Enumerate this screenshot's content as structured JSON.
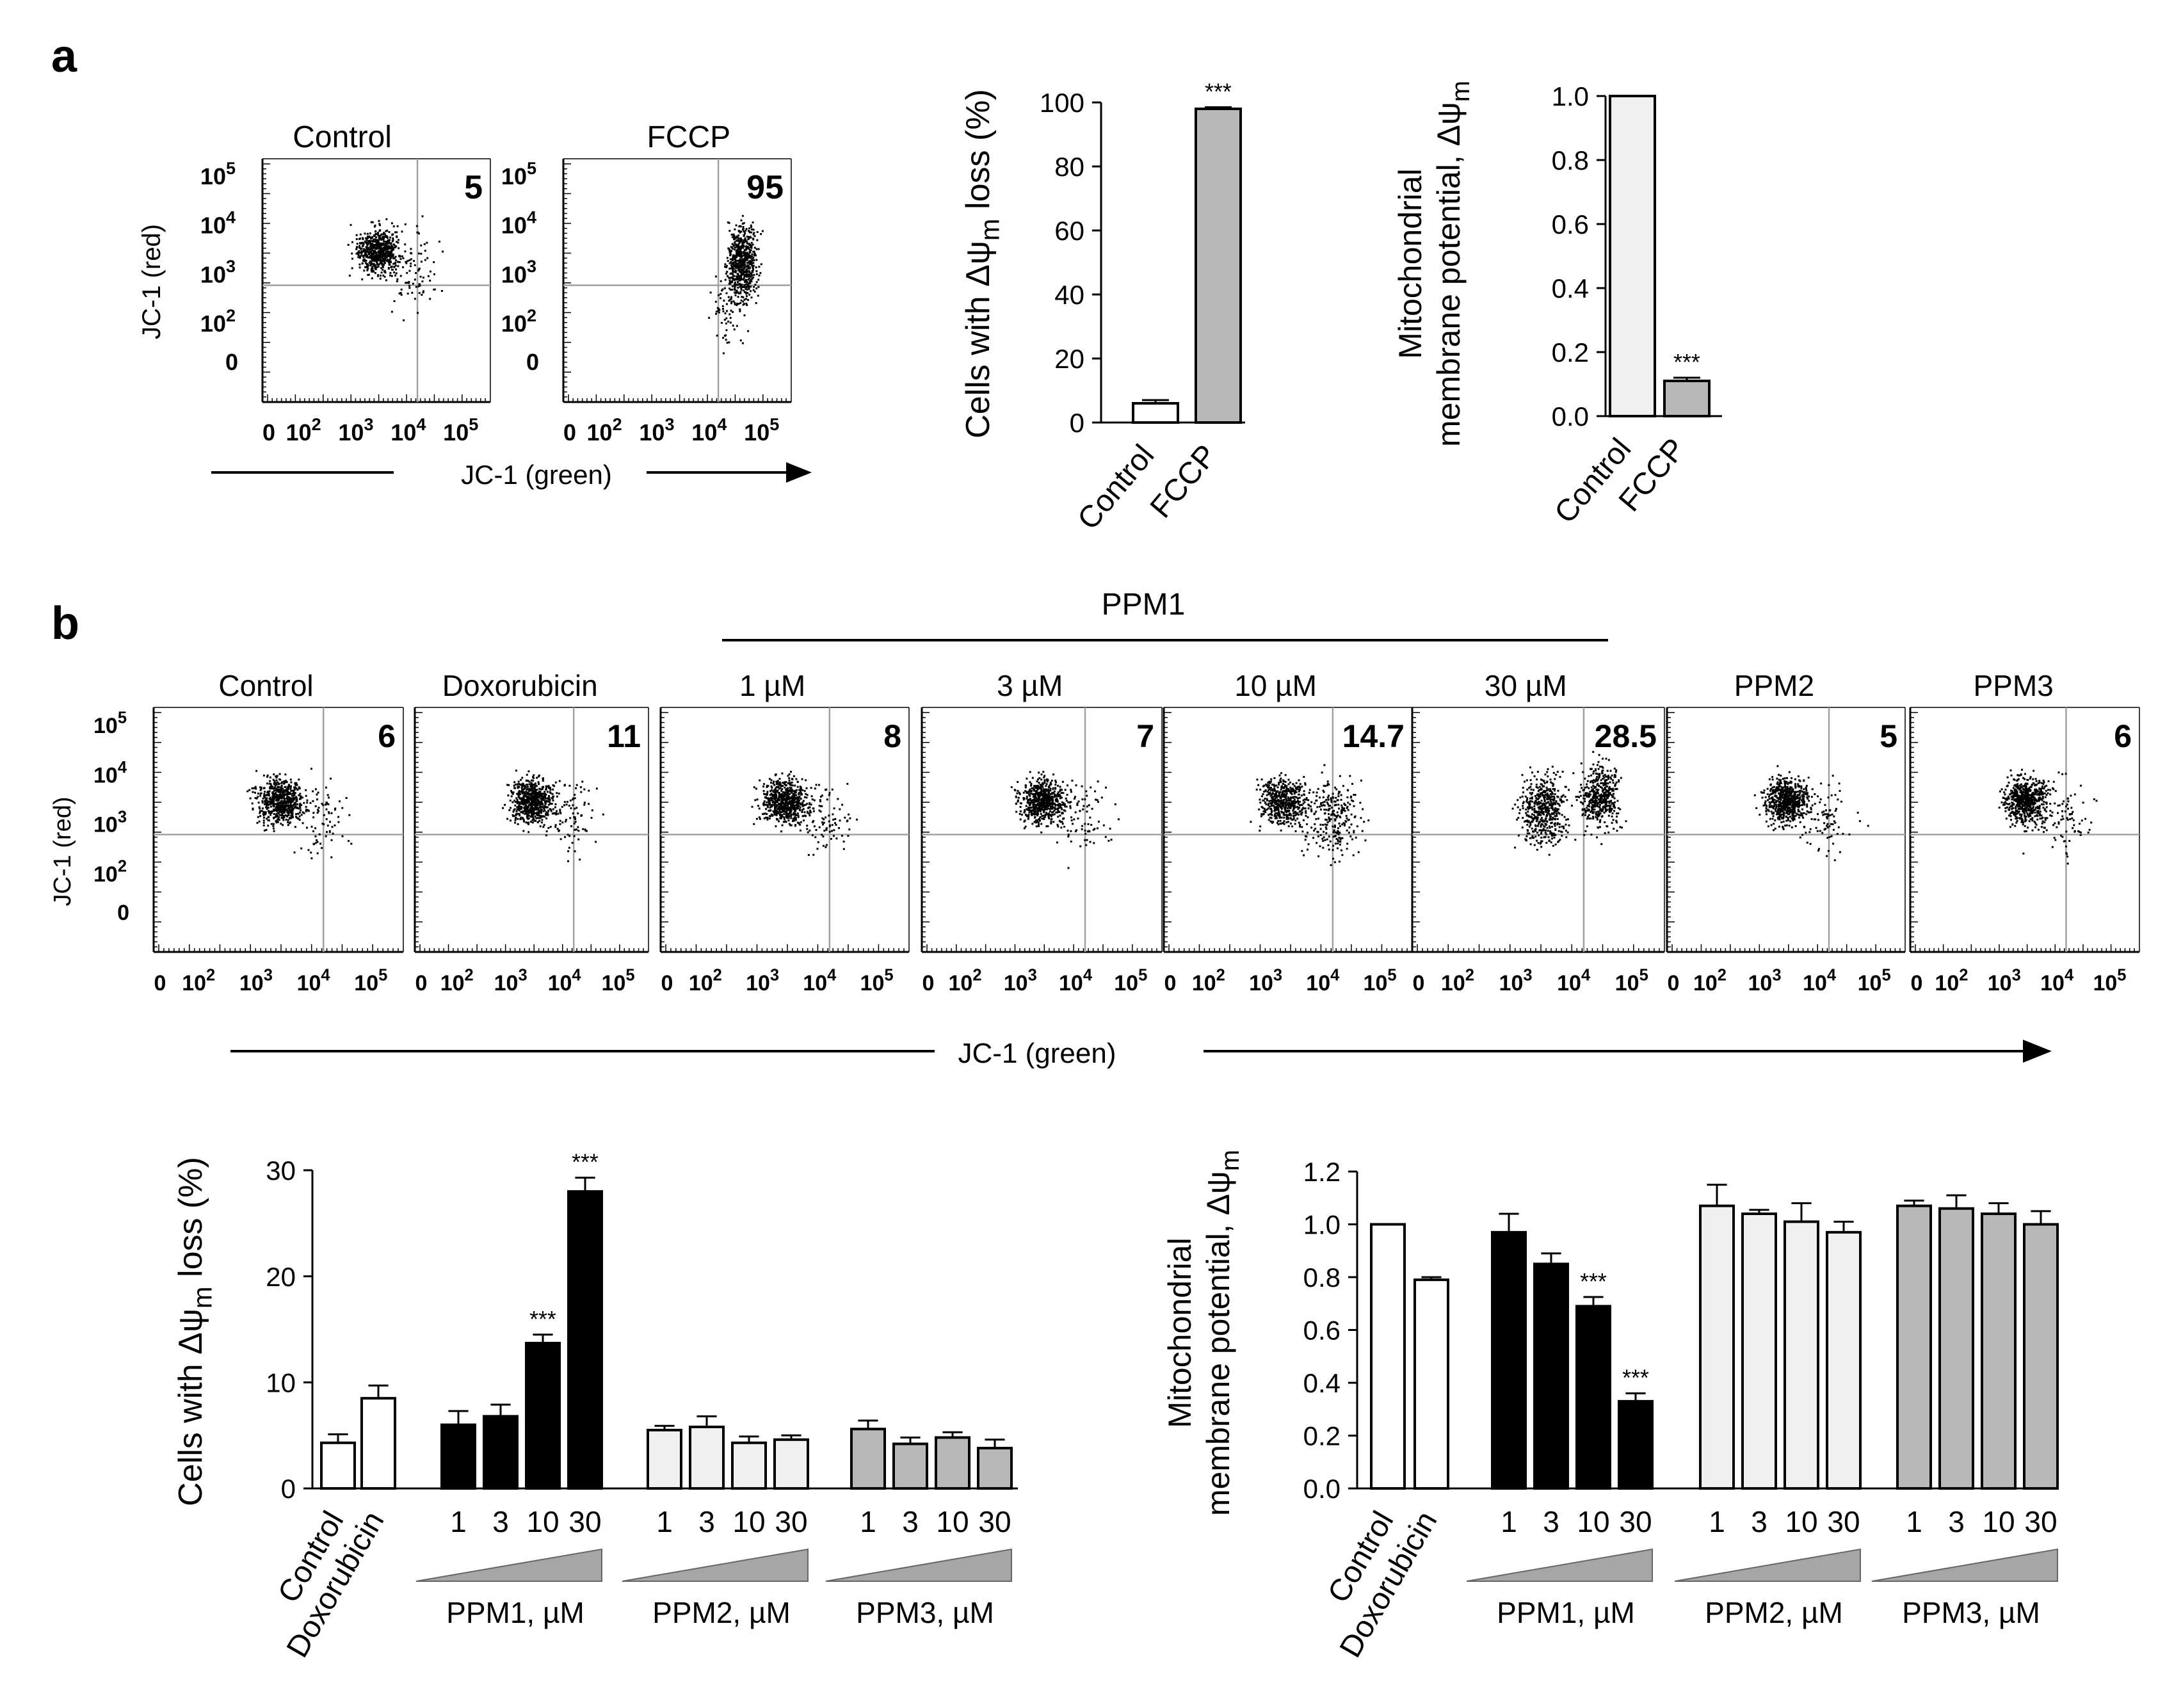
{
  "panel_labels": {
    "a": "a",
    "b": "b"
  },
  "axis_labels": {
    "jc1_red": "JC-1 (red)",
    "jc1_green": "JC-1 (green)",
    "loss_prefix": "Cells with Δψ",
    "loss_sub": "m",
    "loss_suffix": " loss (%)",
    "mmp_line1": "Mitochondrial",
    "mmp_line2": "membrane potential, Δψ",
    "mmp_sub": "m",
    "zero": "0",
    "ten": "10",
    "tick_exp": [
      "2",
      "3",
      "4",
      "5"
    ]
  },
  "colors": {
    "gray": "#b8b8b8",
    "light": "#f0f0f0",
    "white": "#ffffff",
    "black": "#000000",
    "grid": "#a0a0a0",
    "wedge": "#a6a6a6"
  },
  "sig": "***",
  "panel_a": {
    "flow": [
      {
        "title": "Control",
        "value": "5",
        "pattern": "normal"
      },
      {
        "title": "FCCP",
        "value": "95",
        "pattern": "shifted"
      }
    ],
    "bar1": {
      "type": "bar",
      "categories": [
        "Control",
        "FCCP"
      ],
      "values": [
        6,
        98
      ],
      "errors": [
        1,
        0.5
      ],
      "fills": [
        "white",
        "gray"
      ],
      "sig": [
        false,
        true
      ],
      "ylim": [
        0,
        100
      ],
      "yticks": [
        "0",
        "20",
        "40",
        "60",
        "80",
        "100"
      ],
      "ylabel": "Cells with Δψm loss (%)"
    },
    "bar2": {
      "type": "bar",
      "categories": [
        "Control",
        "FCCP"
      ],
      "values": [
        1.0,
        0.11
      ],
      "errors": [
        0,
        0.01
      ],
      "fills": [
        "light",
        "gray"
      ],
      "sig": [
        false,
        true
      ],
      "ylim": [
        0,
        1.0
      ],
      "yticks": [
        "0.0",
        "0.2",
        "0.4",
        "0.6",
        "0.8",
        "1.0"
      ],
      "ylabel": "Mitochondrial membrane potential, Δψm"
    }
  },
  "panel_b": {
    "ppm1_header": "PPM1",
    "flow": [
      {
        "title": "Control",
        "value": "6",
        "pattern": "normal"
      },
      {
        "title": "Doxorubicin",
        "value": "11",
        "pattern": "normal"
      },
      {
        "title": "1 µM",
        "value": "8",
        "pattern": "normal"
      },
      {
        "title": "3 µM",
        "value": "7",
        "pattern": "normal"
      },
      {
        "title": "10 µM",
        "value": "14.7",
        "pattern": "split"
      },
      {
        "title": "30 µM",
        "value": "28.5",
        "pattern": "split2"
      },
      {
        "title": "PPM2",
        "value": "5",
        "pattern": "normal"
      },
      {
        "title": "PPM3",
        "value": "6",
        "pattern": "normal"
      }
    ],
    "groups": [
      {
        "label": "PPM1, µM"
      },
      {
        "label": "PPM2, µM"
      },
      {
        "label": "PPM3, µM"
      }
    ],
    "conc_labels": [
      "1",
      "3",
      "10",
      "30"
    ],
    "controls": [
      "Control",
      "Doxorubicin"
    ],
    "bar1": {
      "type": "bar",
      "ylabel": "Cells with Δψm loss (%)",
      "ylim": [
        0,
        30
      ],
      "yticks": [
        "0",
        "10",
        "20",
        "30"
      ],
      "controls": {
        "values": [
          4.3,
          8.5
        ],
        "errors": [
          0.8,
          1.2
        ],
        "fills": [
          "white",
          "white"
        ]
      },
      "series": [
        {
          "name": "PPM1",
          "values": [
            6,
            6.8,
            13.7,
            28
          ],
          "errors": [
            1.3,
            1.1,
            0.8,
            1.3
          ],
          "fill": "black",
          "sig": [
            false,
            false,
            true,
            true
          ]
        },
        {
          "name": "PPM2",
          "values": [
            5.5,
            5.8,
            4.3,
            4.6
          ],
          "errors": [
            0.4,
            1.0,
            0.6,
            0.4
          ],
          "fill": "light",
          "sig": [
            false,
            false,
            false,
            false
          ]
        },
        {
          "name": "PPM3",
          "values": [
            5.6,
            4.2,
            4.8,
            3.8
          ],
          "errors": [
            0.8,
            0.6,
            0.5,
            0.8
          ],
          "fill": "gray",
          "sig": [
            false,
            false,
            false,
            false
          ]
        }
      ]
    },
    "bar2": {
      "type": "bar",
      "ylabel": "Mitochondrial membrane potential, Δψm",
      "ylim": [
        0,
        1.2
      ],
      "yticks": [
        "0.0",
        "0.2",
        "0.4",
        "0.6",
        "0.8",
        "1.0",
        "1.2"
      ],
      "controls": {
        "values": [
          1.0,
          0.79
        ],
        "errors": [
          0,
          0.01
        ],
        "fills": [
          "white",
          "white"
        ]
      },
      "series": [
        {
          "name": "PPM1",
          "values": [
            0.97,
            0.85,
            0.69,
            0.33
          ],
          "errors": [
            0.07,
            0.04,
            0.035,
            0.03
          ],
          "fill": "black",
          "sig": [
            false,
            false,
            true,
            true
          ]
        },
        {
          "name": "PPM2",
          "values": [
            1.07,
            1.04,
            1.01,
            0.97
          ],
          "errors": [
            0.08,
            0.015,
            0.07,
            0.04
          ],
          "fill": "light",
          "sig": [
            false,
            false,
            false,
            false
          ]
        },
        {
          "name": "PPM3",
          "values": [
            1.07,
            1.06,
            1.04,
            1.0
          ],
          "errors": [
            0.02,
            0.05,
            0.04,
            0.05
          ],
          "fill": "gray",
          "sig": [
            false,
            false,
            false,
            false
          ]
        }
      ]
    }
  }
}
